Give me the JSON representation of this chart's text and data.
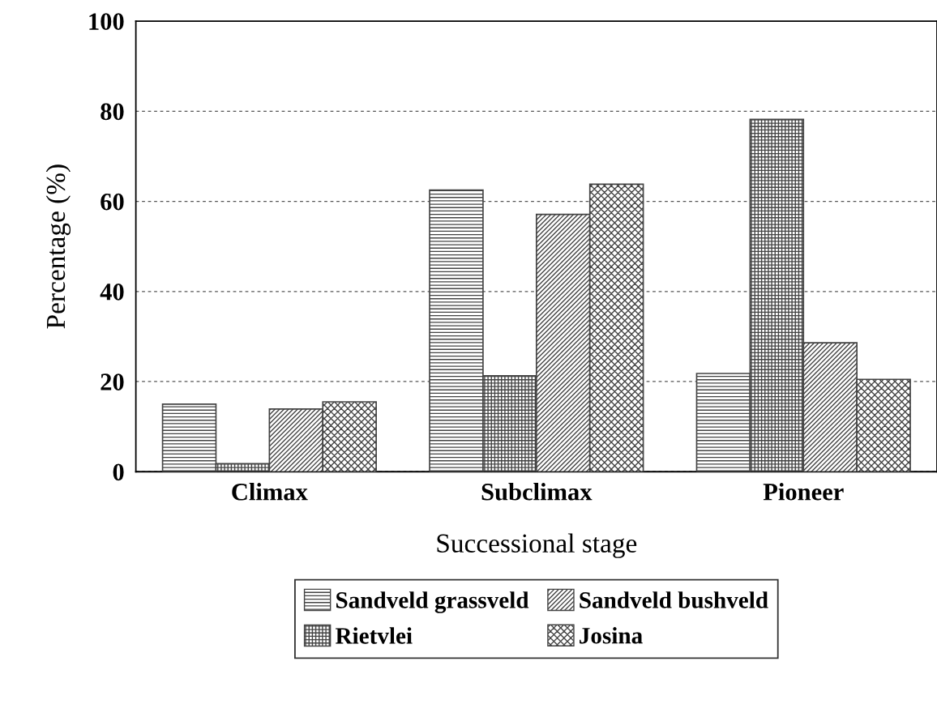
{
  "chart_data": {
    "type": "bar",
    "xlabel": "Successional stage",
    "ylabel": "Percentage (%)",
    "categories": [
      "Climax",
      "Subclimax",
      "Pioneer"
    ],
    "series": [
      {
        "name": "Sandveld grassveld",
        "color": "#444444",
        "values": [
          15.0,
          62.5,
          21.8
        ]
      },
      {
        "name": "Rietvlei",
        "color": "#444444",
        "values": [
          1.8,
          21.3,
          78.2
        ]
      },
      {
        "name": "Sandveld bushveld",
        "color": "#444444",
        "values": [
          13.9,
          57.1,
          28.6
        ]
      },
      {
        "name": "Josina",
        "color": "#444444",
        "values": [
          15.5,
          63.8,
          20.5
        ]
      }
    ],
    "ylim": [
      0,
      100
    ],
    "yticks": [
      0,
      20,
      40,
      60,
      80,
      100
    ],
    "grid": "y",
    "legend": "bottom"
  }
}
